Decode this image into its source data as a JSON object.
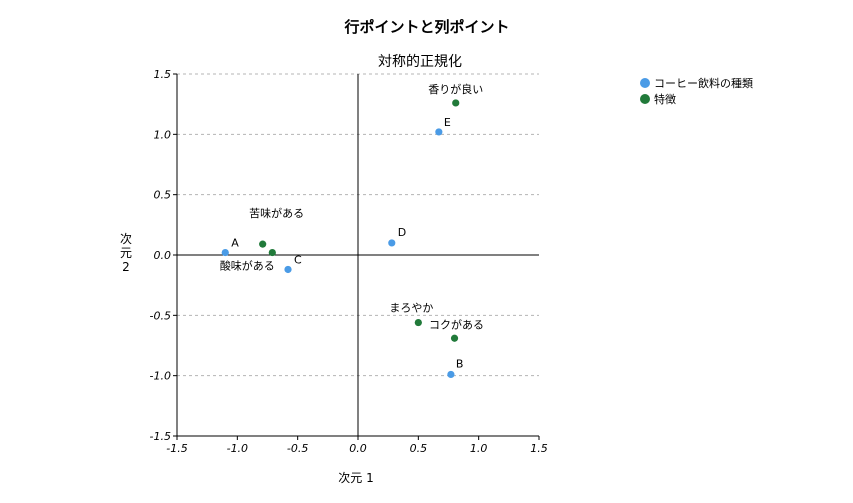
{
  "chart_data": {
    "type": "scatter",
    "title": "行ポイントと列ポイント",
    "subtitle": "対称的正規化",
    "xlabel": "次元 1",
    "ylabel_line1": "次",
    "ylabel_line2": "元",
    "ylabel_line3": "2",
    "xlim": [
      -1.5,
      1.5
    ],
    "ylim": [
      -1.5,
      1.5
    ],
    "x_ticks": [
      "-1.5",
      "-1.0",
      "-0.5",
      "0.0",
      "0.5",
      "1.0",
      "1.5"
    ],
    "y_ticks": [
      "1.5",
      "1.0",
      "0.5",
      "0.0",
      "-0.5",
      "-1.0",
      "-1.5"
    ],
    "grid": "horizontal-dashed",
    "legend_position": "top-right",
    "series": [
      {
        "name": "コーヒー飲料の種類",
        "color": "#4a9be6",
        "points": [
          {
            "label": "A",
            "x": -1.1,
            "y": 0.02
          },
          {
            "label": "B",
            "x": 0.77,
            "y": -0.99
          },
          {
            "label": "C",
            "x": -0.58,
            "y": -0.12
          },
          {
            "label": "D",
            "x": 0.28,
            "y": 0.1
          },
          {
            "label": "E",
            "x": 0.67,
            "y": 1.02
          }
        ]
      },
      {
        "name": "特徴",
        "color": "#217a3a",
        "points": [
          {
            "label": "香りが良い",
            "x": 0.81,
            "y": 1.26
          },
          {
            "label": "苦味がある",
            "x": -0.79,
            "y": 0.09
          },
          {
            "label": "酸味がある",
            "x": -0.71,
            "y": 0.02
          },
          {
            "label": "まろやか",
            "x": 0.5,
            "y": -0.56
          },
          {
            "label": "コクがある",
            "x": 0.8,
            "y": -0.69
          }
        ]
      }
    ]
  }
}
